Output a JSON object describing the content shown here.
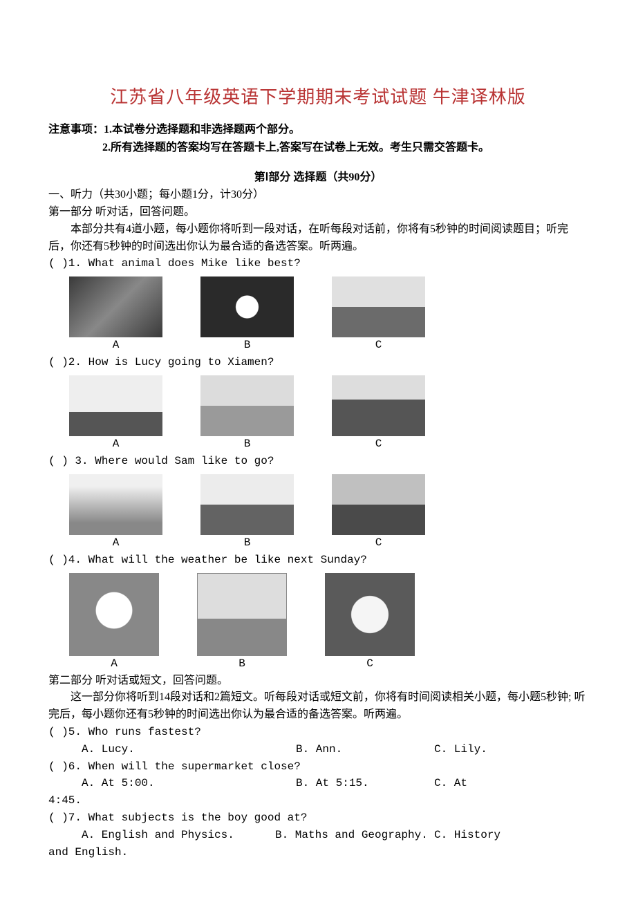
{
  "title": "江苏省八年级英语下学期期末考试试题 牛津译林版",
  "notice": {
    "label": "注意事项：",
    "line1": "1.本试卷分选择题和非选择题两个部分。",
    "line2": "2.所有选择题的答案均写在答题卡上,答案写在试卷上无效。考生只需交答题卡。"
  },
  "section1": {
    "head": "第Ⅰ部分 选择题（共90分）",
    "listening_head": "一、听力（共30小题；每小题1分，计30分）",
    "part1_head": "第一部分 听对话，回答问题。",
    "part1_desc": "本部分共有4道小题，每小题你将听到一段对话，在听每段对话前，你将有5秒钟的时间阅读题目；听完后，你还有5秒钟的时间选出你认为最合适的备选答案。听两遍。"
  },
  "image_questions": [
    {
      "num": "1",
      "text": "What animal does Mike like best?",
      "placeholders": [
        "tiger",
        "panda",
        "elephant"
      ],
      "caps": [
        "A",
        "B",
        "C"
      ]
    },
    {
      "num": "2",
      "text": "How is Lucy going to Xiamen?",
      "placeholders": [
        "train",
        "plane",
        "bus"
      ],
      "caps": [
        "A",
        "B",
        "C"
      ]
    },
    {
      "num": "3",
      "text": "Where would Sam like to go?",
      "placeholders": [
        "eiffel",
        "bigben",
        "opera"
      ],
      "caps": [
        "A",
        "B",
        "C"
      ]
    },
    {
      "num": "4",
      "text": "What will the weather be like next Sunday?",
      "placeholders": [
        "sun",
        "rain",
        "cloud"
      ],
      "caps": [
        "A",
        "B",
        "C"
      ],
      "tall": true
    }
  ],
  "part2": {
    "head": "第二部分 听对话或短文，回答问题。",
    "desc": "这一部分你将听到14段对话和2篇短文。听每段对话或短文前，你将有时间阅读相关小题，每小题5秒钟; 听完后，每小题你还有5秒钟的时间选出你认为最合适的备选答案。听两遍。"
  },
  "text_questions": [
    {
      "num": "5",
      "text": "Who runs fastest?",
      "opts": {
        "a": "A. Lucy.",
        "b": "B. Ann.",
        "c": "C. Lily."
      }
    },
    {
      "num": "6",
      "text": "When will the supermarket close?",
      "opts": {
        "a": "A. At 5:00.",
        "b": "B. At 5:15.",
        "c": "C.    At"
      },
      "wrap": "4:45."
    },
    {
      "num": "7",
      "text": "What subjects is the boy good at?",
      "long": true,
      "opts": {
        "a": "A. English and Physics.",
        "b": "B. Maths and Geography.",
        "c": "C. History"
      },
      "wrap": "and English."
    }
  ],
  "colors": {
    "title": "#b93434",
    "text": "#000000",
    "bg": "#ffffff"
  }
}
